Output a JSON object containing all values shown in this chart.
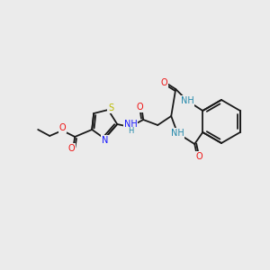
{
  "bg_color": "#ebebeb",
  "bond_color": "#1a1a1a",
  "colors": {
    "N": "#1414ff",
    "O": "#ee1111",
    "S": "#bbbb00",
    "NH": "#2288aa",
    "bond": "#1a1a1a"
  },
  "lw": 1.3,
  "fs": 7.0,
  "figsize": [
    3.0,
    3.0
  ],
  "dpi": 100
}
